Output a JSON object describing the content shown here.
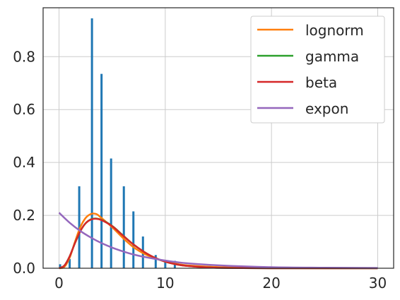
{
  "chart_data": {
    "type": "bar",
    "title": "",
    "xlabel": "",
    "ylabel": "",
    "xlim": [
      -1.5,
      31.5
    ],
    "ylim": [
      0,
      0.985
    ],
    "xticks": [
      0,
      10,
      20,
      30
    ],
    "yticks": [
      0.0,
      0.2,
      0.4,
      0.6,
      0.8
    ],
    "xtick_labels": [
      "0",
      "10",
      "20",
      "30"
    ],
    "ytick_labels": [
      "0.0",
      "0.2",
      "0.4",
      "0.6",
      "0.8"
    ],
    "grid": true,
    "legend_position": "top-right",
    "histogram": {
      "color": "#1f77b4",
      "bars": [
        {
          "x": 0.1,
          "y": 0.015
        },
        {
          "x": 1.0,
          "y": 0.035
        },
        {
          "x": 1.9,
          "y": 0.31
        },
        {
          "x": 3.1,
          "y": 0.945
        },
        {
          "x": 4.0,
          "y": 0.735
        },
        {
          "x": 4.9,
          "y": 0.415
        },
        {
          "x": 6.1,
          "y": 0.31
        },
        {
          "x": 7.0,
          "y": 0.215
        },
        {
          "x": 7.9,
          "y": 0.12
        },
        {
          "x": 9.1,
          "y": 0.05
        },
        {
          "x": 10.0,
          "y": 0.03
        },
        {
          "x": 10.9,
          "y": 0.028
        },
        {
          "x": 18.1,
          "y": 0.005
        }
      ]
    },
    "series": [
      {
        "name": "lognorm",
        "color": "#ff7f0e",
        "x": [
          0,
          0.5,
          1,
          1.5,
          2,
          2.5,
          3,
          3.5,
          4,
          5,
          6,
          7,
          8,
          9,
          10,
          11,
          12,
          14,
          16,
          20,
          25,
          30
        ],
        "y": [
          0.0,
          0.005,
          0.04,
          0.1,
          0.155,
          0.19,
          0.205,
          0.205,
          0.19,
          0.155,
          0.115,
          0.08,
          0.055,
          0.038,
          0.025,
          0.017,
          0.011,
          0.006,
          0.003,
          0.001,
          0.0,
          0.0
        ]
      },
      {
        "name": "gamma",
        "color": "#2ca02c",
        "x": [
          0,
          0.5,
          1,
          1.5,
          2,
          2.5,
          3,
          3.5,
          4,
          5,
          6,
          7,
          8,
          9,
          10,
          11,
          12,
          14,
          16,
          20,
          25,
          30
        ],
        "y": [
          0.0,
          0.01,
          0.045,
          0.095,
          0.14,
          0.17,
          0.185,
          0.188,
          0.183,
          0.16,
          0.125,
          0.09,
          0.062,
          0.04,
          0.025,
          0.015,
          0.009,
          0.003,
          0.001,
          0.0,
          0.0,
          0.0
        ]
      },
      {
        "name": "beta",
        "color": "#d62728",
        "x": [
          0,
          0.5,
          1,
          1.5,
          2,
          2.5,
          3,
          3.5,
          4,
          5,
          6,
          7,
          8,
          9,
          10,
          11,
          12,
          14,
          16,
          20,
          25,
          30
        ],
        "y": [
          0.0,
          0.01,
          0.045,
          0.095,
          0.14,
          0.17,
          0.184,
          0.187,
          0.182,
          0.159,
          0.124,
          0.09,
          0.062,
          0.04,
          0.025,
          0.015,
          0.009,
          0.003,
          0.001,
          0.0,
          0.0,
          0.0
        ]
      },
      {
        "name": "expon",
        "color": "#9467bd",
        "x": [
          0,
          1,
          2,
          3,
          4,
          5,
          6,
          7,
          8,
          10,
          12,
          15,
          20,
          25,
          30
        ],
        "y": [
          0.21,
          0.172,
          0.141,
          0.116,
          0.095,
          0.078,
          0.064,
          0.052,
          0.043,
          0.029,
          0.019,
          0.011,
          0.004,
          0.002,
          0.001
        ]
      }
    ]
  }
}
